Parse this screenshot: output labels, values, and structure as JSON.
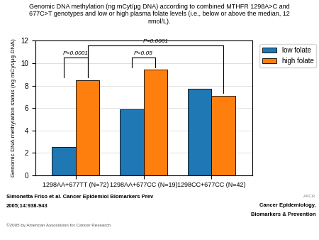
{
  "chart_data": {
    "type": "bar",
    "title": "Genomic DNA methylation (ng mCyt/μg DNA) according to combined MTHFR 1298A>C and\n677C>T genotypes and low or high plasma folate levels (i.e., below or above the median, 12\nnmol/L).",
    "ylabel": "Genomic DNA methylation status (ng mCyt/μg DNA)",
    "categories": [
      "1298AA+677TT (N=72)",
      "1298AA+677CC (N=19)",
      "1298CC+677CC (N=42)"
    ],
    "series": [
      {
        "name": "low folate",
        "values": [
          2.5,
          5.9,
          7.7
        ]
      },
      {
        "name": "high folate",
        "values": [
          8.5,
          9.4,
          7.1
        ]
      }
    ],
    "ylim": [
      0,
      12
    ],
    "yticks": [
      0,
      2,
      4,
      6,
      8,
      10,
      12
    ],
    "grid": true,
    "legend": "upper right",
    "annotations": [
      "P<0.0001",
      "P<0.05",
      "P<0.0001",
      "Simonetta Friso et al. Cancer Epidemiol Biomarkers Prev",
      "2005;14:938-943",
      "©2005 by American Association for Cancer Research",
      "AACR",
      "Cancer Epidemiology,",
      "Biomarkers & Prevention"
    ]
  }
}
